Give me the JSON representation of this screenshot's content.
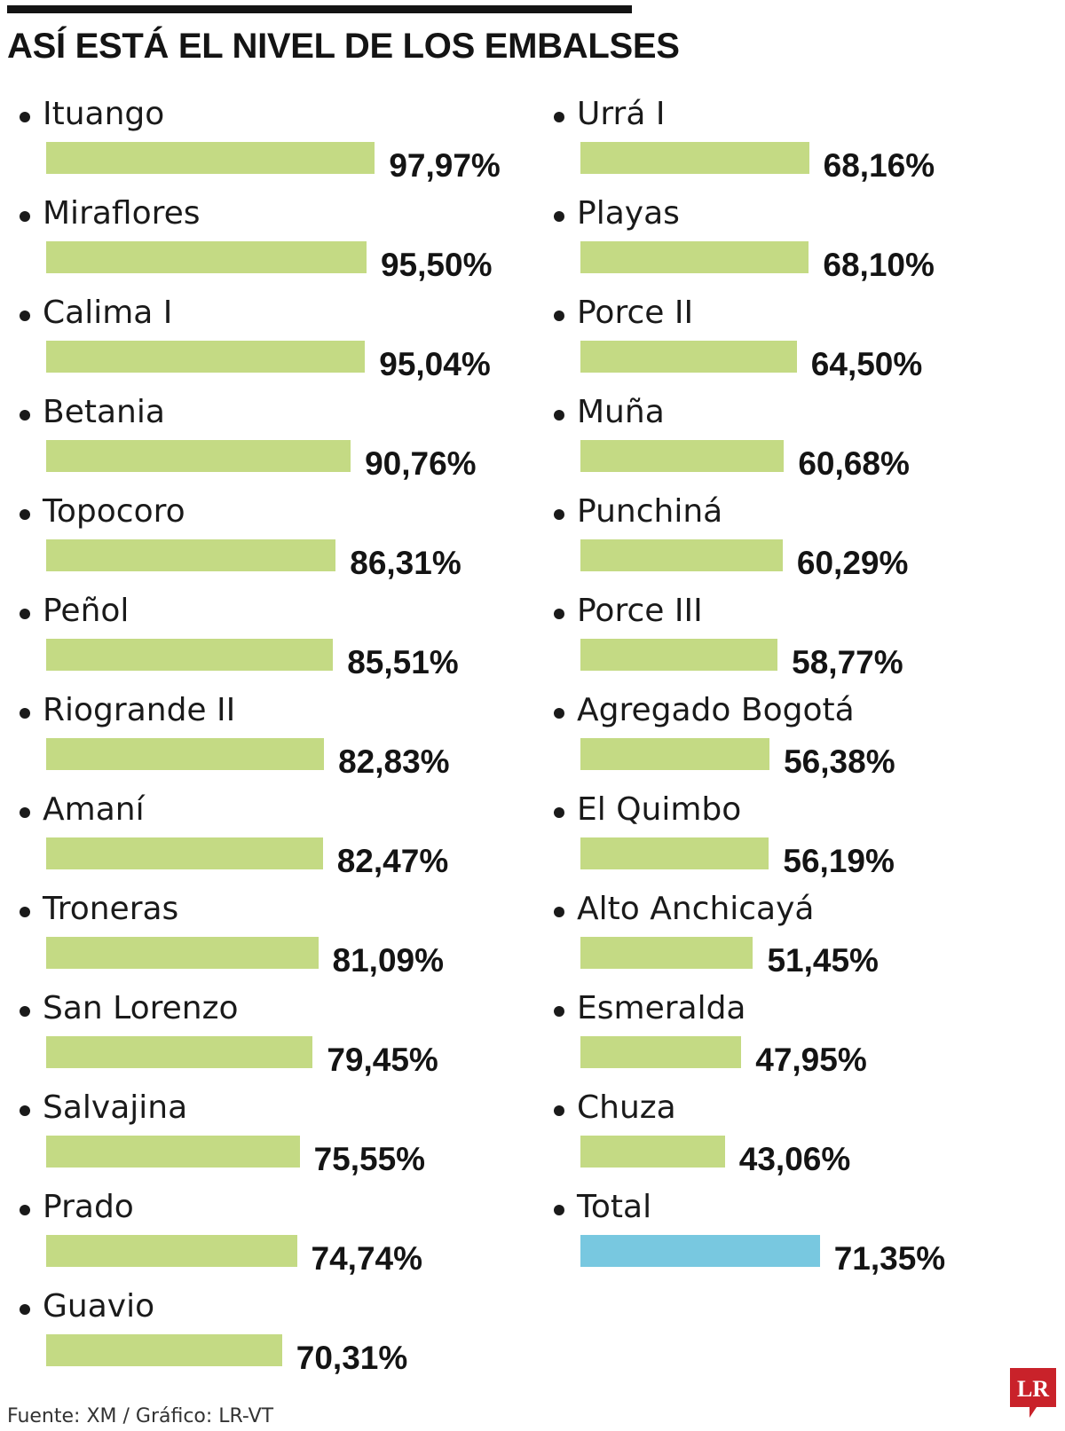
{
  "title": "ASÍ ESTÁ EL NIVEL DE LOS EMBALSES",
  "source": "Fuente: XM / Gráfico: LR-VT",
  "logo": "LR",
  "colors": {
    "bar": "#c4da84",
    "total_bar": "#78c8e0",
    "logo": "#c9222a"
  },
  "chart_data": {
    "type": "bar",
    "orientation": "horizontal",
    "unit": "%",
    "columns": [
      {
        "labels": [
          "97,97%",
          "95,50%",
          "95,04%",
          "90,76%",
          "86,31%",
          "85,51%",
          "82,83%",
          "82,47%",
          "81,09%",
          "79,45%",
          "75,55%",
          "74,74%",
          "70,31%"
        ],
        "categories": [
          "Ituango",
          "Miraflores",
          "Calima I",
          "Betania",
          "Topocoro",
          "Peñol",
          "Riogrande II",
          "Amaní",
          "Troneras",
          "San Lorenzo",
          "Salvajina",
          "Prado",
          "Guavio"
        ],
        "values": [
          97.97,
          95.5,
          95.04,
          90.76,
          86.31,
          85.51,
          82.83,
          82.47,
          81.09,
          79.45,
          75.55,
          74.74,
          70.31
        ]
      },
      {
        "labels": [
          "68,16%",
          "68,10%",
          "64,50%",
          "60,68%",
          "60,29%",
          "58,77%",
          "56,38%",
          "56,19%",
          "51,45%",
          "47,95%",
          "43,06%",
          "71,35%"
        ],
        "categories": [
          "Urrá I",
          "Playas",
          "Porce II",
          "Muña",
          "Punchiná",
          "Porce III",
          "Agregado Bogotá",
          "El Quimbo",
          "Alto Anchicayá",
          "Esmeralda",
          "Chuza",
          "Total"
        ],
        "values": [
          68.16,
          68.1,
          64.5,
          60.68,
          60.29,
          58.77,
          56.38,
          56.19,
          51.45,
          47.95,
          43.06,
          71.35
        ]
      }
    ],
    "highlight": "Total",
    "xlim": [
      0,
      100
    ]
  }
}
